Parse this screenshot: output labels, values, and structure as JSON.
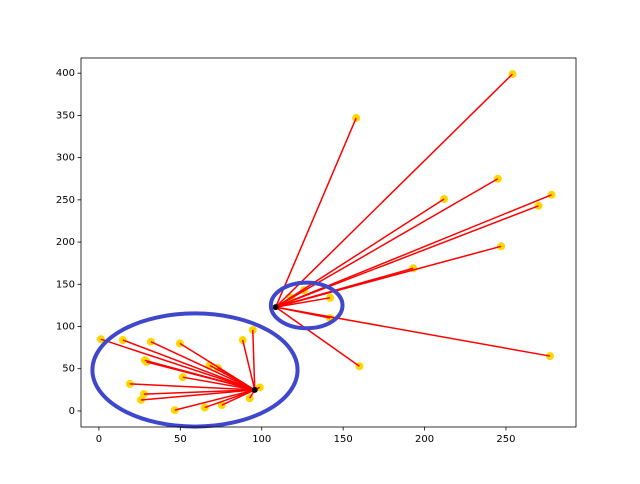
{
  "chart_data": {
    "type": "scatter",
    "xlim": [
      -11,
      293
    ],
    "ylim": [
      -19,
      418
    ],
    "xticks": [
      0,
      50,
      100,
      150,
      200,
      250
    ],
    "yticks": [
      0,
      50,
      100,
      150,
      200,
      250,
      300,
      350,
      400
    ],
    "grid": false,
    "point_color": "#ffd700",
    "line_color": "#ff0000",
    "centroid_color": "#000000",
    "ellipse_color": "#3f48cc",
    "series": [
      {
        "x": [
          1.2,
          14.7,
          31.9,
          49.7,
          94.5,
          88.3,
          28.2,
          29.4,
          68,
          73,
          51.5,
          19,
          27.6,
          25.8,
          46.6,
          65,
          75.5,
          92.6,
          98.8
        ],
        "y": [
          85,
          84,
          82,
          80,
          96,
          84,
          60,
          58,
          54,
          51,
          40,
          32,
          20,
          13,
          1,
          4,
          7,
          15,
          28
        ],
        "centroid_x": 95.7,
        "centroid_y": 24.9,
        "ellipse_center_x": 59,
        "ellipse_center_y": 48.5,
        "ellipse_half_width": 63,
        "ellipse_half_height": 67
      },
      {
        "x": [
          254,
          158,
          245,
          212,
          278,
          270,
          247,
          193,
          277,
          160,
          142,
          142,
          126,
          118
        ],
        "y": [
          399,
          347,
          275,
          251,
          256,
          243,
          195,
          169,
          65,
          53,
          110,
          134,
          143,
          134
        ],
        "centroid_x": 108.6,
        "centroid_y": 123,
        "ellipse_center_x": 127.6,
        "ellipse_center_y": 125,
        "ellipse_half_width": 22,
        "ellipse_half_height": 27
      }
    ]
  }
}
